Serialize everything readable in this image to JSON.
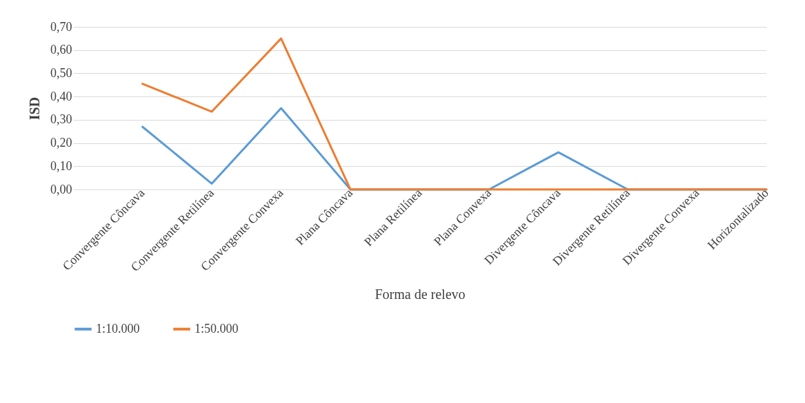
{
  "chart_data": {
    "type": "line",
    "xlabel": "Forma de relevo",
    "ylabel": "ISD",
    "categories": [
      null,
      "Convergente Côncava",
      "Convergente Retilínea",
      "Convergente Convexa",
      "Plana Côncava",
      "Plana Retilínea",
      "Plana Convexa",
      "Divergente Côncava",
      "Divergente Retilínea",
      "Divergente Convexa",
      "Horizontalizado"
    ],
    "series": [
      {
        "name": "1:10.000",
        "color": "#5b9bd5",
        "values": [
          null,
          0.27,
          0.025,
          0.35,
          0,
          0,
          0,
          0.16,
          0,
          0,
          0
        ]
      },
      {
        "name": "1:50.000",
        "color": "#ed7d31",
        "values": [
          null,
          0.455,
          0.335,
          0.65,
          0,
          0,
          0,
          0,
          0,
          0,
          0
        ]
      }
    ],
    "ylim": [
      0,
      0.7
    ],
    "yticks": [
      {
        "value": 0,
        "label": "0,00"
      },
      {
        "value": 0.1,
        "label": "0,10"
      },
      {
        "value": 0.2,
        "label": "0,20"
      },
      {
        "value": 0.3,
        "label": "0,30"
      },
      {
        "value": 0.4,
        "label": "0,40"
      },
      {
        "value": 0.5,
        "label": "0,50"
      },
      {
        "value": 0.6,
        "label": "0,60"
      },
      {
        "value": 0.7,
        "label": "0,70"
      }
    ],
    "grid": "y",
    "legend": "bottom",
    "marker": "none",
    "line_style": "solid"
  }
}
